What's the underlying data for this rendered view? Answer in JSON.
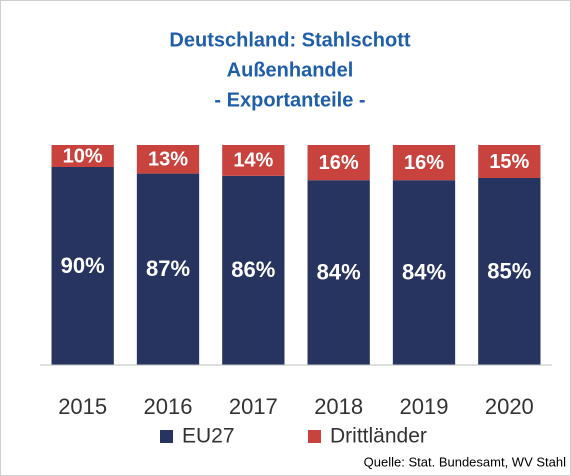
{
  "chart_data": {
    "type": "stacked_bar",
    "title": [
      "Deutschland: Stahlschott",
      "Außenhandel",
      "- Exportanteile -"
    ],
    "categories": [
      "2015",
      "2016",
      "2017",
      "2018",
      "2019",
      "2020"
    ],
    "series": [
      {
        "name": "EU27",
        "color": "#26345f",
        "values": [
          90,
          87,
          86,
          84,
          84,
          85
        ],
        "value_labels": [
          "90%",
          "87%",
          "86%",
          "84%",
          "84%",
          "85%"
        ]
      },
      {
        "name": "Drittländer",
        "color": "#c9433e",
        "values": [
          10,
          13,
          14,
          16,
          16,
          15
        ],
        "value_labels": [
          "10%",
          "13%",
          "14%",
          "16%",
          "16%",
          "15%"
        ]
      }
    ],
    "ylim": [
      0,
      100
    ],
    "legend": "bottom",
    "source": "Quelle: Stat. Bundesamt, WV Stahl"
  }
}
